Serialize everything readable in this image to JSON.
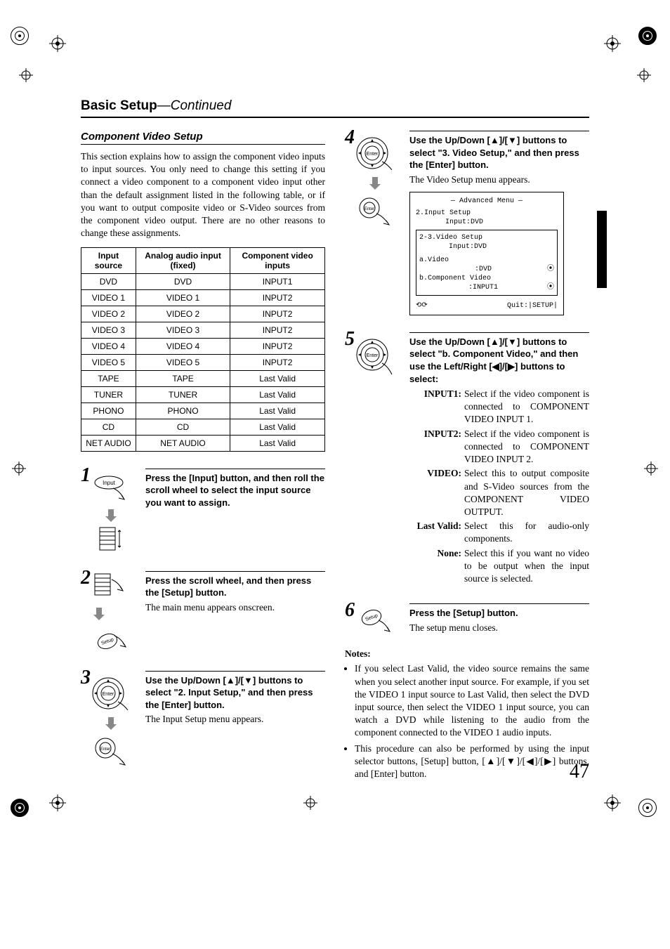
{
  "page_title": {
    "bold": "Basic Setup",
    "sep": "—",
    "italic": "Continued"
  },
  "section_title": "Component Video Setup",
  "intro": "This section explains how to assign the component video inputs to input sources. You only need to change this setting if you connect a video component to a component video input other than the default assignment listed in the following table, or if you want to output composite video or S-Video sources from the component video output. There are no other reasons to change these assignments.",
  "table": {
    "headers": [
      "Input source",
      "Analog audio input (fixed)",
      "Component video inputs"
    ],
    "rows": [
      [
        "DVD",
        "DVD",
        "INPUT1"
      ],
      [
        "VIDEO 1",
        "VIDEO 1",
        "INPUT2"
      ],
      [
        "VIDEO 2",
        "VIDEO 2",
        "INPUT2"
      ],
      [
        "VIDEO 3",
        "VIDEO 3",
        "INPUT2"
      ],
      [
        "VIDEO 4",
        "VIDEO 4",
        "INPUT2"
      ],
      [
        "VIDEO 5",
        "VIDEO 5",
        "INPUT2"
      ],
      [
        "TAPE",
        "TAPE",
        "Last Valid"
      ],
      [
        "TUNER",
        "TUNER",
        "Last Valid"
      ],
      [
        "PHONO",
        "PHONO",
        "Last Valid"
      ],
      [
        "CD",
        "CD",
        "Last Valid"
      ],
      [
        "NET AUDIO",
        "NET AUDIO",
        "Last Valid"
      ]
    ]
  },
  "steps": [
    {
      "num": "1",
      "bold": "Press the [Input] button, and then roll the scroll wheel to select the input source you want to assign.",
      "text": ""
    },
    {
      "num": "2",
      "bold": "Press the scroll wheel, and then press the [Setup] button.",
      "text": "The main menu appears onscreen."
    },
    {
      "num": "3",
      "bold_pre": "Use the Up/Down [",
      "bold_post": "] buttons to select \"2. Input Setup,\" and then press the [Enter] button.",
      "text": "The Input Setup menu appears."
    },
    {
      "num": "4",
      "bold_pre": "Use the Up/Down [",
      "bold_post": "] buttons to select \"3. Video Setup,\" and then press the [Enter] button.",
      "text": "The Video Setup menu appears."
    },
    {
      "num": "5",
      "bold_pre": "Use the Up/Down [",
      "bold_mid": "] buttons to select \"b. Component Video,\" and then use the Left/Right [",
      "bold_post": "] buttons to select:",
      "defs": [
        {
          "term": "INPUT1:",
          "def": "Select if the video component is connected to COMPONENT VIDEO INPUT 1."
        },
        {
          "term": "INPUT2:",
          "def": "Select if the video component is connected to COMPONENT VIDEO INPUT 2."
        },
        {
          "term": "VIDEO:",
          "def": "Select this to output composite and S-Video sources from the COMPONENT VIDEO OUTPUT."
        },
        {
          "term": "Last Valid:",
          "def": "Select this for audio-only components."
        },
        {
          "term": "None:",
          "def": "Select this if you want no video to be output when the input source is selected."
        }
      ]
    },
    {
      "num": "6",
      "bold": "Press the [Setup] button.",
      "text": "The setup menu closes."
    }
  ],
  "menu": {
    "title": "Advanced Menu",
    "line1": "2.Input Setup",
    "line1b": "   Input:DVD",
    "line2": "2-3.Video Setup",
    "line2b": "   Input:DVD",
    "opt_a": "a.Video",
    "opt_a_val": ":DVD",
    "opt_b": "b.Component Video",
    "opt_b_val": ":INPUT1",
    "quit": "Quit:|SETUP|"
  },
  "notes_title": "Notes:",
  "notes": [
    "If you select Last Valid, the video source remains the same when you select another input source. For example, if you set the VIDEO 1 input source to Last Valid, then select the DVD input source, then select the VIDEO 1 input source, you can watch a DVD while listening to the audio from the component connected to the VIDEO 1 audio inputs.",
    "This procedure can also be performed by using the input selector buttons, [Setup] button, [▲]/[▼]/[◀]/[▶] buttons, and [Enter] button."
  ],
  "page_number": "47",
  "glyphs": {
    "up": "▲",
    "down": "▼",
    "left": "◀",
    "right": "▶",
    "sep_mid": "]/["
  }
}
